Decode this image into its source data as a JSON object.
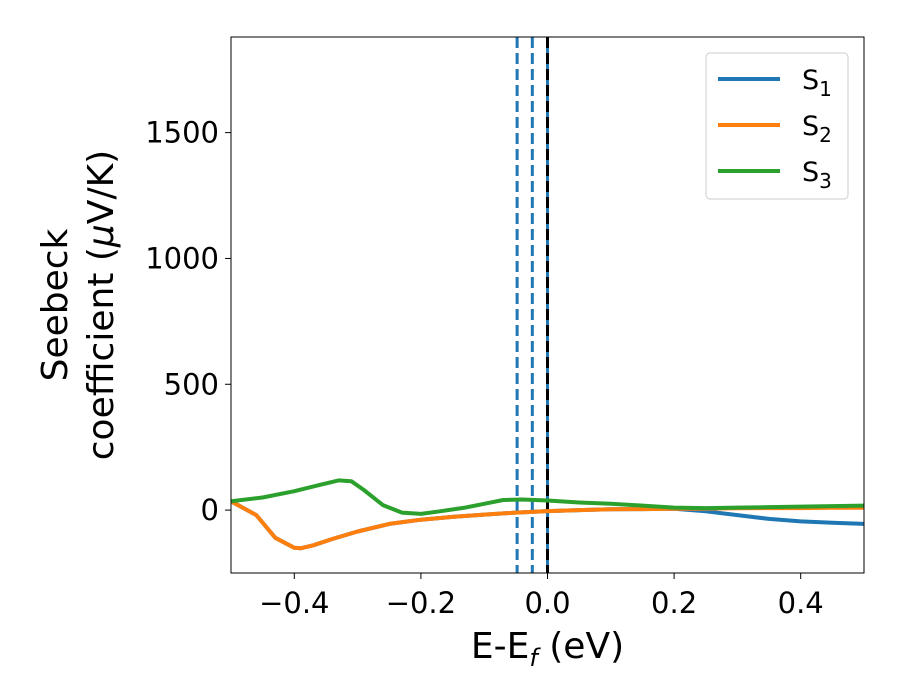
{
  "chart_data": {
    "type": "line",
    "xlabel": "E-E",
    "xlabel_sub": "f",
    "xlabel_unit": " (eV)",
    "ylabel_line1": "Seebeck",
    "ylabel_line2": "coefficient  (",
    "ylabel_mu": "μ",
    "ylabel_unit": "V/K)",
    "xlim": [
      -0.5,
      0.5
    ],
    "ylim": [
      -250,
      1880
    ],
    "xticks": [
      -0.4,
      -0.2,
      0.0,
      0.2,
      0.4
    ],
    "xtick_labels": [
      "−0.4",
      "−0.2",
      "0.0",
      "0.2",
      "0.4"
    ],
    "yticks": [
      0,
      500,
      1000,
      1500
    ],
    "ytick_labels": [
      "0",
      "500",
      "1000",
      "1500"
    ],
    "grid": false,
    "legend_position": "top-right",
    "series": [
      {
        "name": "S",
        "name_sub": "1",
        "color": "#1f77b4",
        "x": [
          -0.5,
          -0.46,
          -0.43,
          -0.4,
          -0.39,
          -0.37,
          -0.34,
          -0.3,
          -0.25,
          -0.2,
          -0.15,
          -0.1,
          -0.05,
          0.0,
          0.05,
          0.1,
          0.15,
          0.2,
          0.25,
          0.3,
          0.35,
          0.4,
          0.45,
          0.5
        ],
        "y": [
          35,
          -20,
          -110,
          -150,
          -152,
          -140,
          -115,
          -85,
          -55,
          -38,
          -27,
          -18,
          -10,
          -4,
          0,
          3,
          4,
          5,
          -5,
          -20,
          -35,
          -45,
          -50,
          -55
        ]
      },
      {
        "name": "S",
        "name_sub": "2",
        "color": "#ff7f0e",
        "x": [
          -0.5,
          -0.46,
          -0.43,
          -0.4,
          -0.39,
          -0.37,
          -0.34,
          -0.3,
          -0.25,
          -0.2,
          -0.15,
          -0.1,
          -0.05,
          0.0,
          0.05,
          0.1,
          0.15,
          0.2,
          0.25,
          0.3,
          0.35,
          0.4,
          0.45,
          0.5
        ],
        "y": [
          35,
          -20,
          -110,
          -150,
          -152,
          -140,
          -115,
          -85,
          -55,
          -38,
          -27,
          -18,
          -10,
          -4,
          0,
          3,
          4,
          5,
          6,
          7,
          8,
          8,
          9,
          9
        ]
      },
      {
        "name": "S",
        "name_sub": "3",
        "color": "#2ca02c",
        "x": [
          -0.5,
          -0.45,
          -0.4,
          -0.36,
          -0.33,
          -0.31,
          -0.29,
          -0.26,
          -0.23,
          -0.2,
          -0.17,
          -0.13,
          -0.1,
          -0.07,
          -0.04,
          0.0,
          0.05,
          0.1,
          0.15,
          0.2,
          0.25,
          0.3,
          0.35,
          0.4,
          0.45,
          0.5
        ],
        "y": [
          35,
          50,
          75,
          100,
          118,
          115,
          80,
          20,
          -10,
          -15,
          -5,
          10,
          25,
          40,
          42,
          38,
          30,
          25,
          18,
          10,
          8,
          10,
          12,
          14,
          16,
          18
        ]
      }
    ],
    "vlines": [
      {
        "x": -0.048,
        "color": "#1f77b4",
        "style": "dashed"
      },
      {
        "x": -0.024,
        "color": "#1f77b4",
        "style": "dashed"
      },
      {
        "x": 0.0,
        "color": "#1f77b4",
        "style": "solid"
      },
      {
        "x": 0.0,
        "color": "#000000",
        "style": "dashed"
      }
    ]
  }
}
